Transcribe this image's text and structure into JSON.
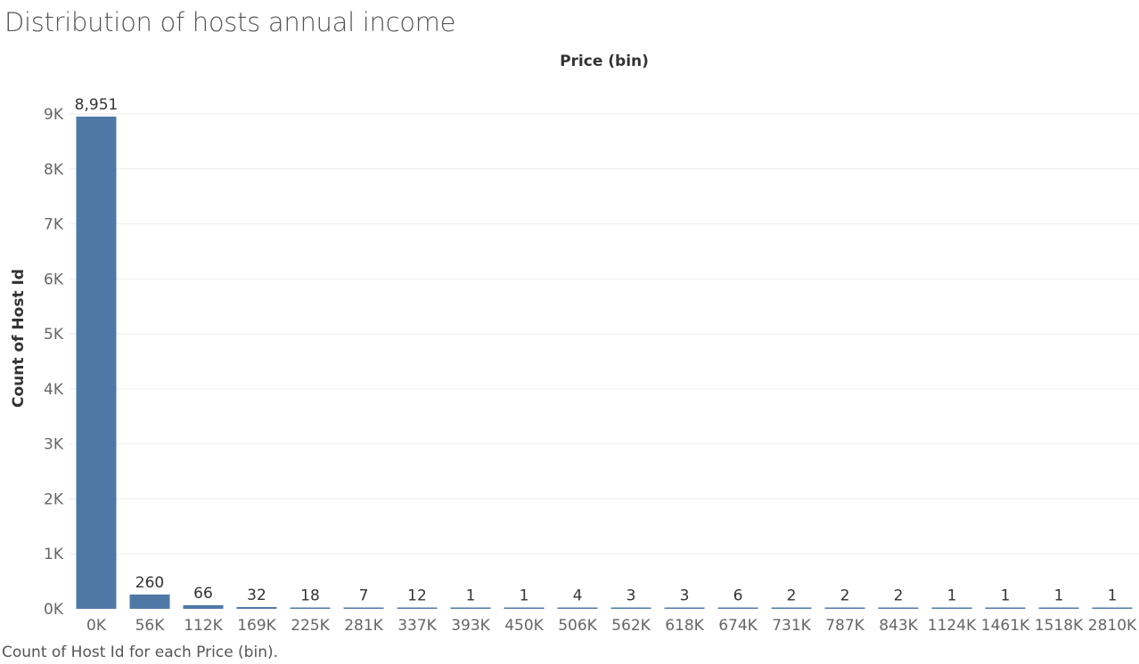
{
  "page": {
    "title": "Distribution of hosts annual income",
    "caption": "Count of Host Id for each Price (bin)."
  },
  "chart_data": {
    "type": "bar",
    "title": "Distribution of hosts annual income",
    "xlabel": "Price (bin)",
    "ylabel": "Count of Host Id",
    "categories": [
      "0K",
      "56K",
      "112K",
      "169K",
      "225K",
      "281K",
      "337K",
      "393K",
      "450K",
      "506K",
      "562K",
      "618K",
      "674K",
      "731K",
      "787K",
      "843K",
      "1124K",
      "1461K",
      "1518K",
      "2810K"
    ],
    "values": [
      8951,
      260,
      66,
      32,
      18,
      7,
      12,
      1,
      1,
      4,
      3,
      3,
      6,
      2,
      2,
      2,
      1,
      1,
      1,
      1
    ],
    "value_labels": [
      "8,951",
      "260",
      "66",
      "32",
      "18",
      "7",
      "12",
      "1",
      "1",
      "4",
      "3",
      "3",
      "6",
      "2",
      "2",
      "2",
      "1",
      "1",
      "1",
      "1"
    ],
    "yticks": [
      0,
      1000,
      2000,
      3000,
      4000,
      5000,
      6000,
      7000,
      8000,
      9000
    ],
    "ytick_labels": [
      "0K",
      "1K",
      "2K",
      "3K",
      "4K",
      "5K",
      "6K",
      "7K",
      "8K",
      "9K"
    ],
    "ylim": [
      0,
      9000
    ],
    "xlabel_position": "top",
    "grid": true,
    "bar_color": "#4e79a7",
    "grid_color": "#eeeeee"
  }
}
